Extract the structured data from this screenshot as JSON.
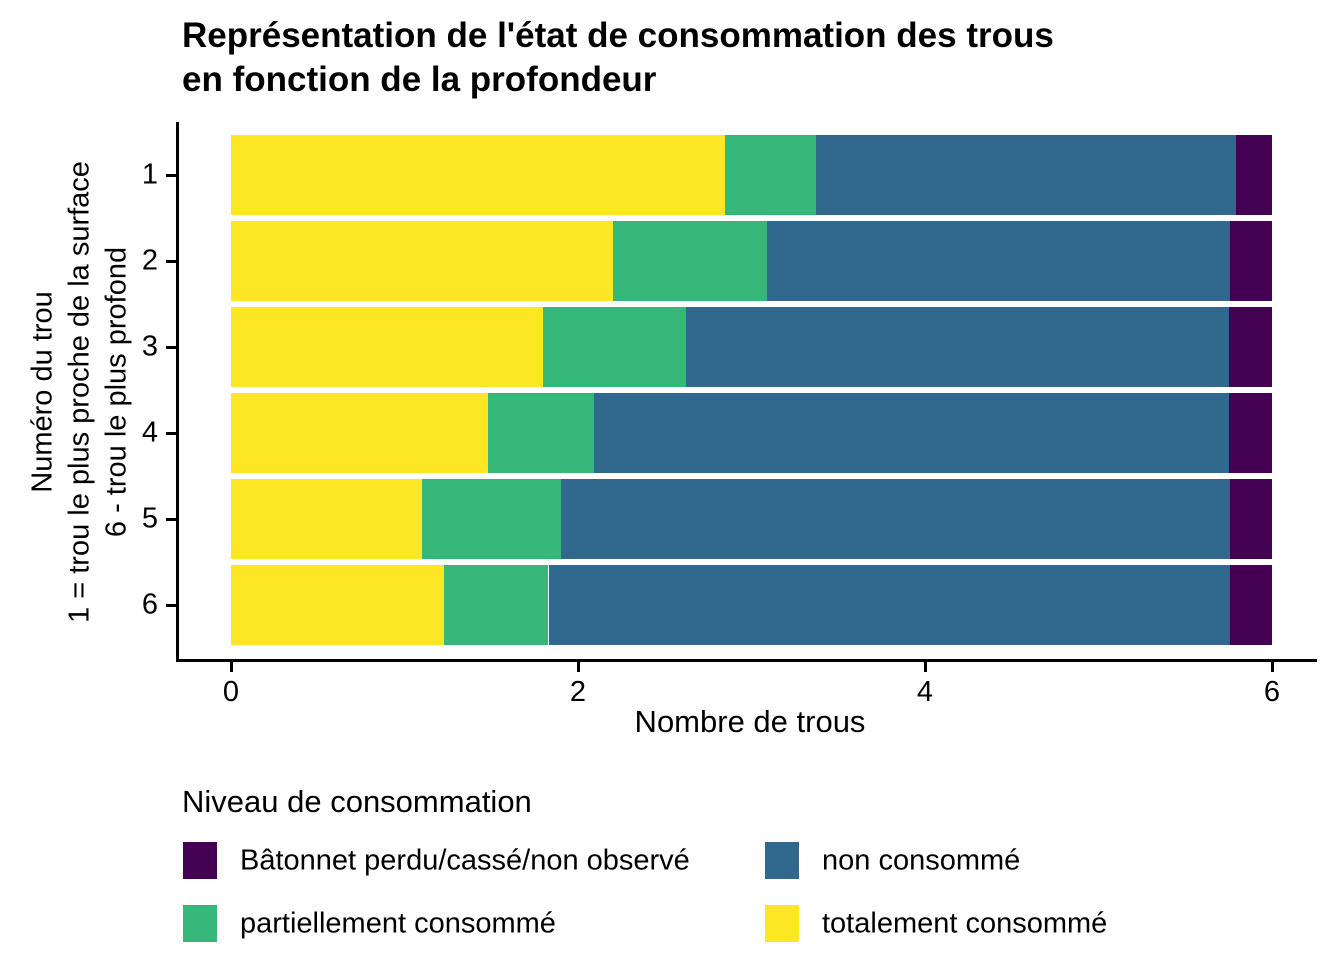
{
  "title": {
    "line1": "Représentation de l'état de consommation des trous",
    "line2": "en fonction de la profondeur"
  },
  "axes": {
    "x": {
      "label": "Nombre de trous",
      "ticks": [
        0,
        2,
        4,
        6
      ],
      "range": [
        0,
        6
      ]
    },
    "y": {
      "label_lines": [
        "Numéro du trou",
        "1 = trou le plus proche de la surface",
        "6 - trou le plus profond"
      ],
      "categories": [
        "1",
        "2",
        "3",
        "4",
        "5",
        "6"
      ]
    }
  },
  "legend": {
    "title": "Niveau de consommation",
    "items": [
      {
        "label": "Bâtonnet perdu/cassé/non observé",
        "color": "#440154"
      },
      {
        "label": "non consommé",
        "color": "#31688E"
      },
      {
        "label": "partiellement consommé",
        "color": "#35B779"
      },
      {
        "label": "totalement consommé",
        "color": "#FDE725"
      }
    ]
  },
  "colors": {
    "lost": "#440154",
    "not_consumed": "#31688E",
    "partially_consumed": "#35B779",
    "totally_consumed": "#FDE725",
    "axis": "#000000",
    "background": "#ffffff"
  },
  "chart_data": {
    "type": "bar",
    "orientation": "horizontal",
    "stacked": true,
    "title": "Représentation de l'état de consommation des trous en fonction de la profondeur",
    "xlabel": "Nombre de trous",
    "ylabel": "Numéro du trou; 1 = trou le plus proche de la surface; 6 - trou le plus profond",
    "xlim": [
      0,
      6
    ],
    "grid": false,
    "legend_position": "bottom",
    "categories": [
      "1",
      "2",
      "3",
      "4",
      "5",
      "6"
    ],
    "series": [
      {
        "name": "totalement consommé",
        "color": "#FDE725",
        "values": [
          2.85,
          2.2,
          1.8,
          1.48,
          1.1,
          1.23
        ]
      },
      {
        "name": "partiellement consommé",
        "color": "#35B779",
        "values": [
          0.52,
          0.89,
          0.82,
          0.61,
          0.8,
          0.6
        ]
      },
      {
        "name": "non consommé",
        "color": "#31688E",
        "values": [
          2.42,
          2.67,
          3.13,
          3.66,
          3.86,
          3.93
        ]
      },
      {
        "name": "Bâtonnet perdu/cassé/non observé",
        "color": "#440154",
        "values": [
          0.21,
          0.24,
          0.25,
          0.25,
          0.24,
          0.24
        ]
      }
    ]
  }
}
